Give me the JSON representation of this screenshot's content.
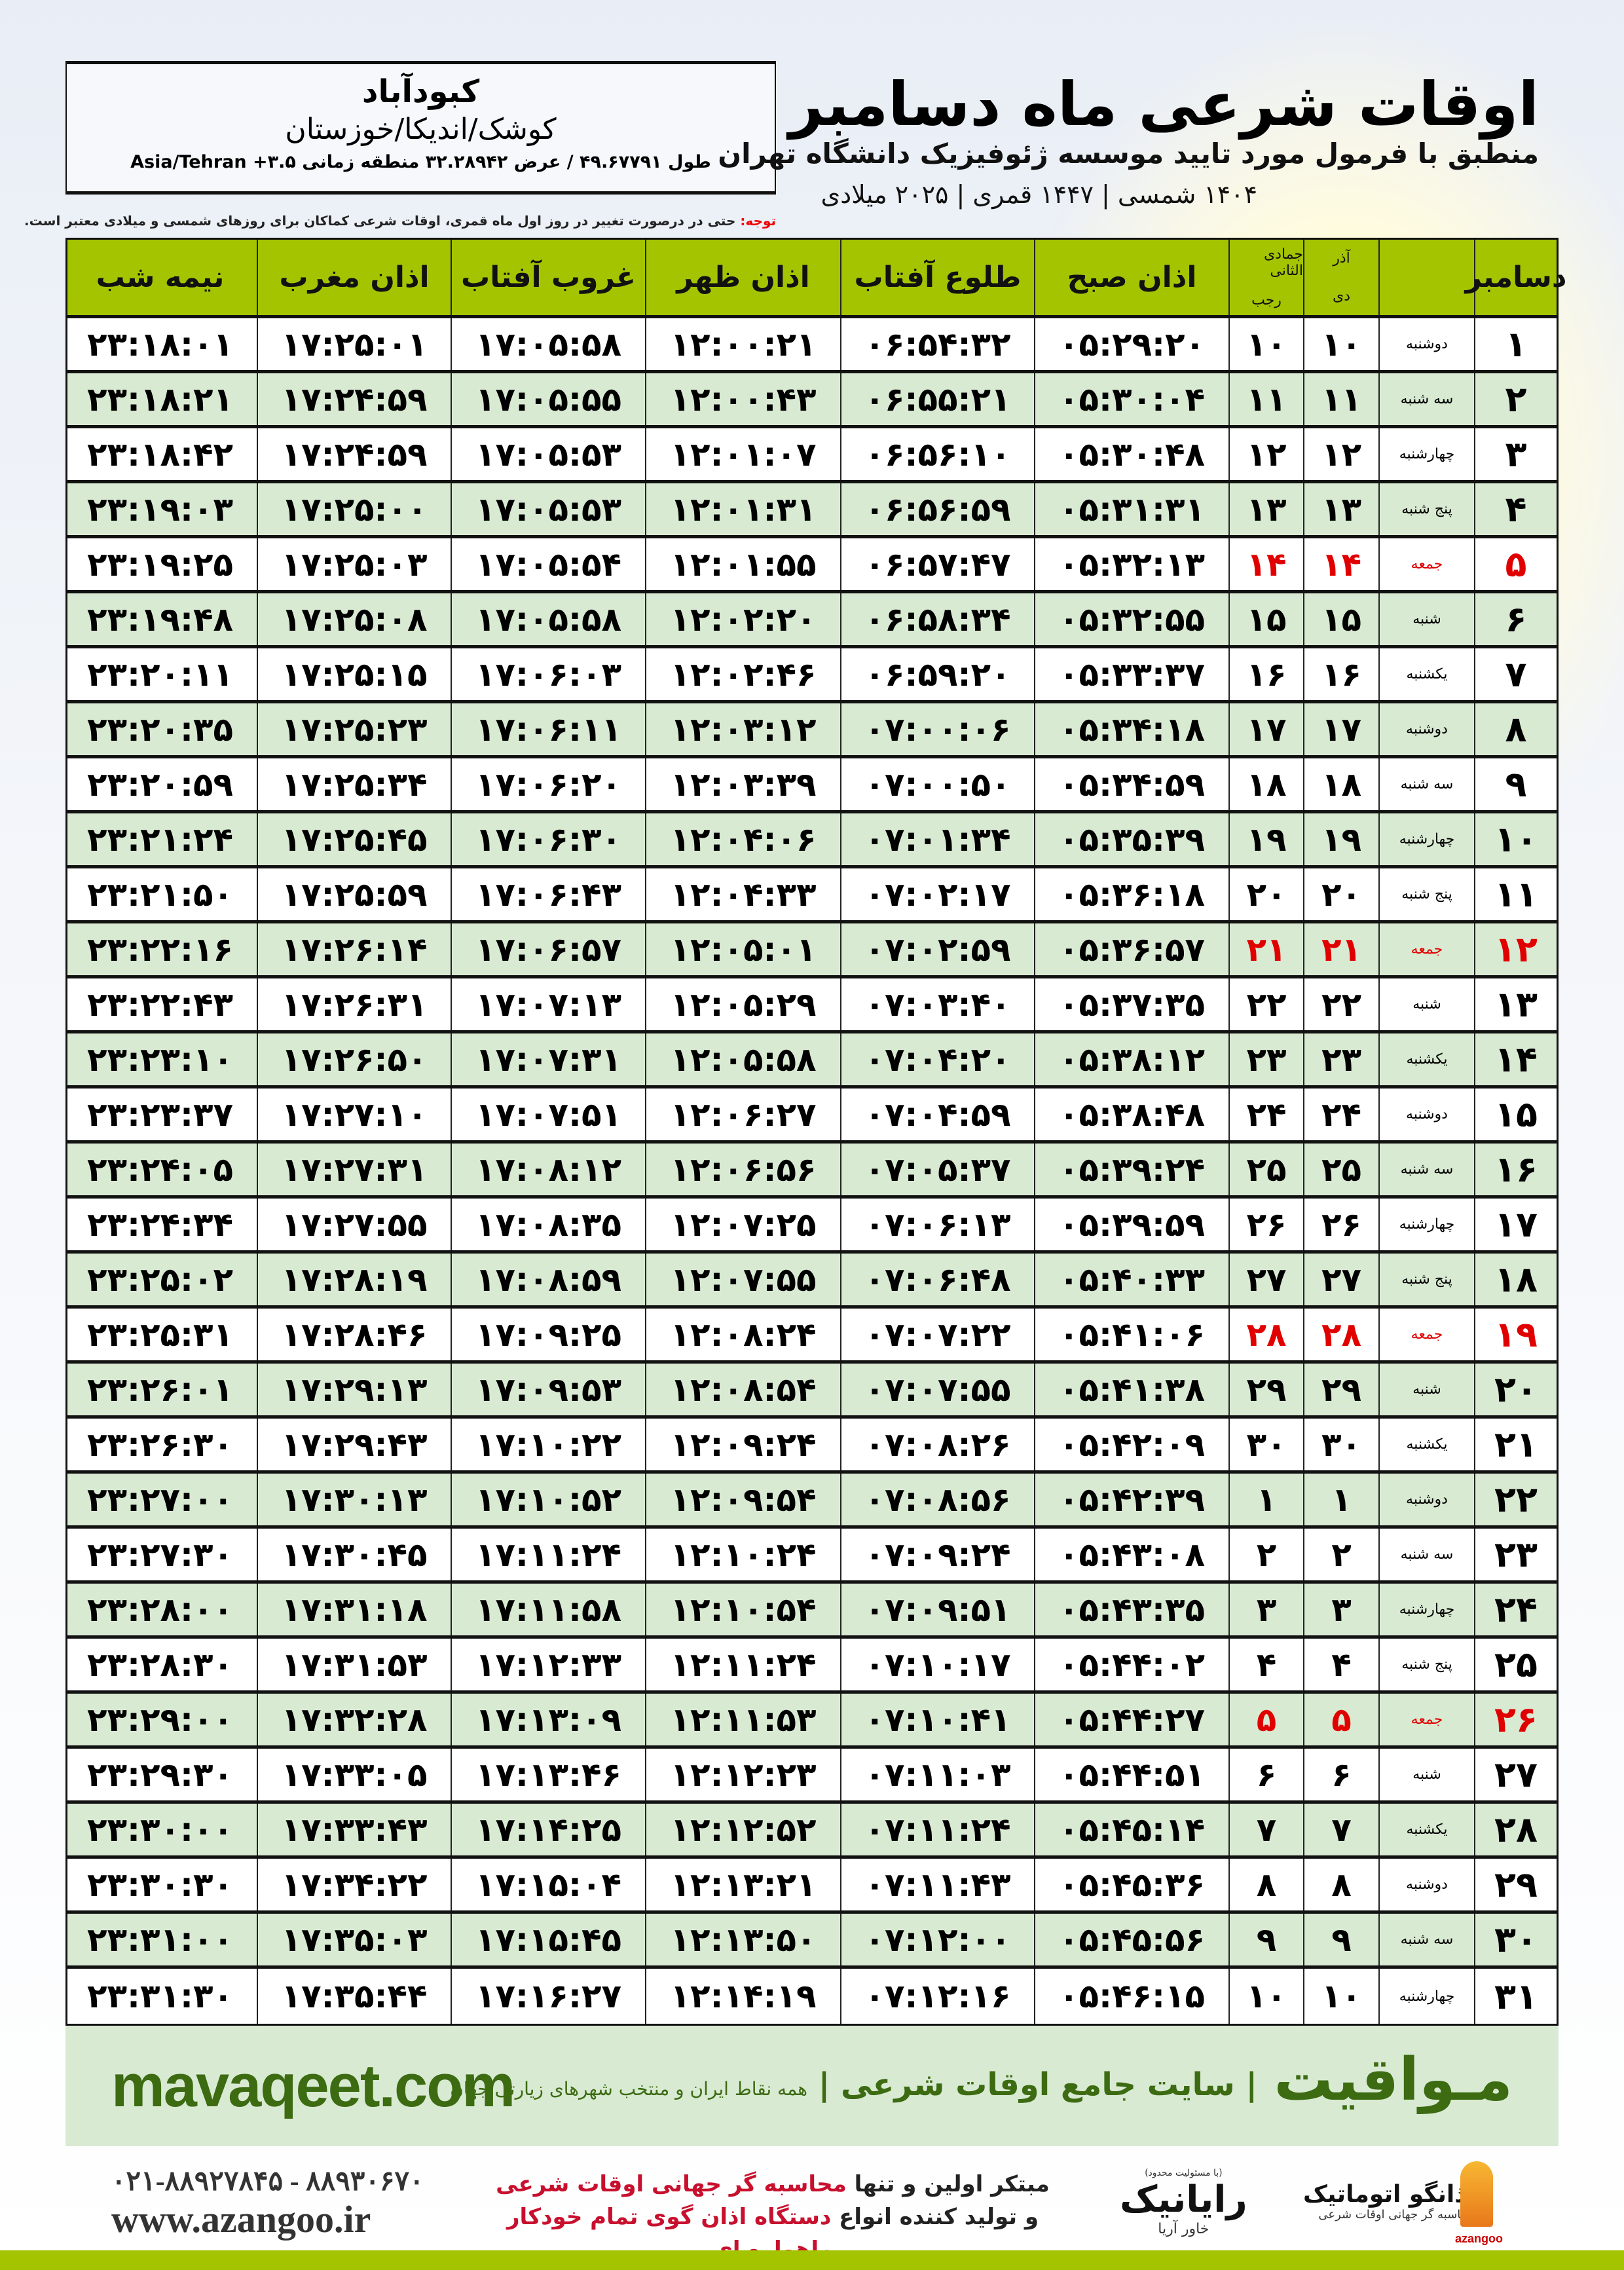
{
  "info": {
    "city": "کبودآباد",
    "region": "کوشک/اندیکا/خوزستان",
    "coords": "طول ۴۹.۶۷۷۹۱ / عرض ۳۲.۲۸۹۴۲ منطقه زمانی ۳.۵+ Asia/Tehran"
  },
  "header": {
    "title": "اوقات شرعی ماه دسامبر",
    "subtitle": "منطبق با فرمول مورد تایید موسسه ژئوفیزیک دانشگاه تهران",
    "dates": "۱۴۰۴ شمسی | ۱۴۴۷ قمری | ۲۰۲۵ میلادی"
  },
  "note": {
    "label": "توجه:",
    "text": " حتی در درصورت تغییر در روز اول ماه قمری، اوقات شرعی کماکان برای روزهای شمسی و میلادی معتبر است."
  },
  "columns": {
    "day": "دسامبر",
    "azar_top": "آذر",
    "azar_bottom": "دی",
    "hijri_top": "جمادی الثانی",
    "hijri_bottom": "رجب",
    "sobh": "اذان صبح",
    "tolu": "طلوع آفتاب",
    "zohr": "اذان ظهر",
    "ghoroob": "غروب آفتاب",
    "maghrib": "اذان مغرب",
    "nimeshab": "نیمه شب"
  },
  "colors": {
    "header_green": "#a4c400",
    "row_alt": "#d9ead3",
    "friday_red": "#e10000",
    "brand_green": "#3c6b12"
  },
  "rows": [
    [
      "۱",
      "دوشنبه",
      "۱۰",
      "۱۰",
      "۰۵:۲۹:۲۰",
      "۰۶:۵۴:۳۲",
      "۱۲:۰۰:۲۱",
      "۱۷:۰۵:۵۸",
      "۱۷:۲۵:۰۱",
      "۲۳:۱۸:۰۱"
    ],
    [
      "۲",
      "سه شنبه",
      "۱۱",
      "۱۱",
      "۰۵:۳۰:۰۴",
      "۰۶:۵۵:۲۱",
      "۱۲:۰۰:۴۳",
      "۱۷:۰۵:۵۵",
      "۱۷:۲۴:۵۹",
      "۲۳:۱۸:۲۱"
    ],
    [
      "۳",
      "چهارشنبه",
      "۱۲",
      "۱۲",
      "۰۵:۳۰:۴۸",
      "۰۶:۵۶:۱۰",
      "۱۲:۰۱:۰۷",
      "۱۷:۰۵:۵۳",
      "۱۷:۲۴:۵۹",
      "۲۳:۱۸:۴۲"
    ],
    [
      "۴",
      "پنج شنبه",
      "۱۳",
      "۱۳",
      "۰۵:۳۱:۳۱",
      "۰۶:۵۶:۵۹",
      "۱۲:۰۱:۳۱",
      "۱۷:۰۵:۵۳",
      "۱۷:۲۵:۰۰",
      "۲۳:۱۹:۰۳"
    ],
    [
      "۵",
      "جمعه",
      "۱۴",
      "۱۴",
      "۰۵:۳۲:۱۳",
      "۰۶:۵۷:۴۷",
      "۱۲:۰۱:۵۵",
      "۱۷:۰۵:۵۴",
      "۱۷:۲۵:۰۳",
      "۲۳:۱۹:۲۵"
    ],
    [
      "۶",
      "شنبه",
      "۱۵",
      "۱۵",
      "۰۵:۳۲:۵۵",
      "۰۶:۵۸:۳۴",
      "۱۲:۰۲:۲۰",
      "۱۷:۰۵:۵۸",
      "۱۷:۲۵:۰۸",
      "۲۳:۱۹:۴۸"
    ],
    [
      "۷",
      "یکشنبه",
      "۱۶",
      "۱۶",
      "۰۵:۳۳:۳۷",
      "۰۶:۵۹:۲۰",
      "۱۲:۰۲:۴۶",
      "۱۷:۰۶:۰۳",
      "۱۷:۲۵:۱۵",
      "۲۳:۲۰:۱۱"
    ],
    [
      "۸",
      "دوشنبه",
      "۱۷",
      "۱۷",
      "۰۵:۳۴:۱۸",
      "۰۷:۰۰:۰۶",
      "۱۲:۰۳:۱۲",
      "۱۷:۰۶:۱۱",
      "۱۷:۲۵:۲۳",
      "۲۳:۲۰:۳۵"
    ],
    [
      "۹",
      "سه شنبه",
      "۱۸",
      "۱۸",
      "۰۵:۳۴:۵۹",
      "۰۷:۰۰:۵۰",
      "۱۲:۰۳:۳۹",
      "۱۷:۰۶:۲۰",
      "۱۷:۲۵:۳۴",
      "۲۳:۲۰:۵۹"
    ],
    [
      "۱۰",
      "چهارشنبه",
      "۱۹",
      "۱۹",
      "۰۵:۳۵:۳۹",
      "۰۷:۰۱:۳۴",
      "۱۲:۰۴:۰۶",
      "۱۷:۰۶:۳۰",
      "۱۷:۲۵:۴۵",
      "۲۳:۲۱:۲۴"
    ],
    [
      "۱۱",
      "پنج شنبه",
      "۲۰",
      "۲۰",
      "۰۵:۳۶:۱۸",
      "۰۷:۰۲:۱۷",
      "۱۲:۰۴:۳۳",
      "۱۷:۰۶:۴۳",
      "۱۷:۲۵:۵۹",
      "۲۳:۲۱:۵۰"
    ],
    [
      "۱۲",
      "جمعه",
      "۲۱",
      "۲۱",
      "۰۵:۳۶:۵۷",
      "۰۷:۰۲:۵۹",
      "۱۲:۰۵:۰۱",
      "۱۷:۰۶:۵۷",
      "۱۷:۲۶:۱۴",
      "۲۳:۲۲:۱۶"
    ],
    [
      "۱۳",
      "شنبه",
      "۲۲",
      "۲۲",
      "۰۵:۳۷:۳۵",
      "۰۷:۰۳:۴۰",
      "۱۲:۰۵:۲۹",
      "۱۷:۰۷:۱۳",
      "۱۷:۲۶:۳۱",
      "۲۳:۲۲:۴۳"
    ],
    [
      "۱۴",
      "یکشنبه",
      "۲۳",
      "۲۳",
      "۰۵:۳۸:۱۲",
      "۰۷:۰۴:۲۰",
      "۱۲:۰۵:۵۸",
      "۱۷:۰۷:۳۱",
      "۱۷:۲۶:۵۰",
      "۲۳:۲۳:۱۰"
    ],
    [
      "۱۵",
      "دوشنبه",
      "۲۴",
      "۲۴",
      "۰۵:۳۸:۴۸",
      "۰۷:۰۴:۵۹",
      "۱۲:۰۶:۲۷",
      "۱۷:۰۷:۵۱",
      "۱۷:۲۷:۱۰",
      "۲۳:۲۳:۳۷"
    ],
    [
      "۱۶",
      "سه شنبه",
      "۲۵",
      "۲۵",
      "۰۵:۳۹:۲۴",
      "۰۷:۰۵:۳۷",
      "۱۲:۰۶:۵۶",
      "۱۷:۰۸:۱۲",
      "۱۷:۲۷:۳۱",
      "۲۳:۲۴:۰۵"
    ],
    [
      "۱۷",
      "چهارشنبه",
      "۲۶",
      "۲۶",
      "۰۵:۳۹:۵۹",
      "۰۷:۰۶:۱۳",
      "۱۲:۰۷:۲۵",
      "۱۷:۰۸:۳۵",
      "۱۷:۲۷:۵۵",
      "۲۳:۲۴:۳۴"
    ],
    [
      "۱۸",
      "پنج شنبه",
      "۲۷",
      "۲۷",
      "۰۵:۴۰:۳۳",
      "۰۷:۰۶:۴۸",
      "۱۲:۰۷:۵۵",
      "۱۷:۰۸:۵۹",
      "۱۷:۲۸:۱۹",
      "۲۳:۲۵:۰۲"
    ],
    [
      "۱۹",
      "جمعه",
      "۲۸",
      "۲۸",
      "۰۵:۴۱:۰۶",
      "۰۷:۰۷:۲۲",
      "۱۲:۰۸:۲۴",
      "۱۷:۰۹:۲۵",
      "۱۷:۲۸:۴۶",
      "۲۳:۲۵:۳۱"
    ],
    [
      "۲۰",
      "شنبه",
      "۲۹",
      "۲۹",
      "۰۵:۴۱:۳۸",
      "۰۷:۰۷:۵۵",
      "۱۲:۰۸:۵۴",
      "۱۷:۰۹:۵۳",
      "۱۷:۲۹:۱۳",
      "۲۳:۲۶:۰۱"
    ],
    [
      "۲۱",
      "یکشنبه",
      "۳۰",
      "۳۰",
      "۰۵:۴۲:۰۹",
      "۰۷:۰۸:۲۶",
      "۱۲:۰۹:۲۴",
      "۱۷:۱۰:۲۲",
      "۱۷:۲۹:۴۳",
      "۲۳:۲۶:۳۰"
    ],
    [
      "۲۲",
      "دوشنبه",
      "۱",
      "۱",
      "۰۵:۴۲:۳۹",
      "۰۷:۰۸:۵۶",
      "۱۲:۰۹:۵۴",
      "۱۷:۱۰:۵۲",
      "۱۷:۳۰:۱۳",
      "۲۳:۲۷:۰۰"
    ],
    [
      "۲۳",
      "سه شنبه",
      "۲",
      "۲",
      "۰۵:۴۳:۰۸",
      "۰۷:۰۹:۲۴",
      "۱۲:۱۰:۲۴",
      "۱۷:۱۱:۲۴",
      "۱۷:۳۰:۴۵",
      "۲۳:۲۷:۳۰"
    ],
    [
      "۲۴",
      "چهارشنبه",
      "۳",
      "۳",
      "۰۵:۴۳:۳۵",
      "۰۷:۰۹:۵۱",
      "۱۲:۱۰:۵۴",
      "۱۷:۱۱:۵۸",
      "۱۷:۳۱:۱۸",
      "۲۳:۲۸:۰۰"
    ],
    [
      "۲۵",
      "پنج شنبه",
      "۴",
      "۴",
      "۰۵:۴۴:۰۲",
      "۰۷:۱۰:۱۷",
      "۱۲:۱۱:۲۴",
      "۱۷:۱۲:۳۳",
      "۱۷:۳۱:۵۳",
      "۲۳:۲۸:۳۰"
    ],
    [
      "۲۶",
      "جمعه",
      "۵",
      "۵",
      "۰۵:۴۴:۲۷",
      "۰۷:۱۰:۴۱",
      "۱۲:۱۱:۵۳",
      "۱۷:۱۳:۰۹",
      "۱۷:۳۲:۲۸",
      "۲۳:۲۹:۰۰"
    ],
    [
      "۲۷",
      "شنبه",
      "۶",
      "۶",
      "۰۵:۴۴:۵۱",
      "۰۷:۱۱:۰۳",
      "۱۲:۱۲:۲۳",
      "۱۷:۱۳:۴۶",
      "۱۷:۳۳:۰۵",
      "۲۳:۲۹:۳۰"
    ],
    [
      "۲۸",
      "یکشنبه",
      "۷",
      "۷",
      "۰۵:۴۵:۱۴",
      "۰۷:۱۱:۲۴",
      "۱۲:۱۲:۵۲",
      "۱۷:۱۴:۲۵",
      "۱۷:۳۳:۴۳",
      "۲۳:۳۰:۰۰"
    ],
    [
      "۲۹",
      "دوشنبه",
      "۸",
      "۸",
      "۰۵:۴۵:۳۶",
      "۰۷:۱۱:۴۳",
      "۱۲:۱۳:۲۱",
      "۱۷:۱۵:۰۴",
      "۱۷:۳۴:۲۲",
      "۲۳:۳۰:۳۰"
    ],
    [
      "۳۰",
      "سه شنبه",
      "۹",
      "۹",
      "۰۵:۴۵:۵۶",
      "۰۷:۱۲:۰۰",
      "۱۲:۱۳:۵۰",
      "۱۷:۱۵:۴۵",
      "۱۷:۳۵:۰۳",
      "۲۳:۳۱:۰۰"
    ],
    [
      "۳۱",
      "چهارشنبه",
      "۱۰",
      "۱۰",
      "۰۵:۴۶:۱۵",
      "۰۷:۱۲:۱۶",
      "۱۲:۱۴:۱۹",
      "۱۷:۱۶:۲۷",
      "۱۷:۳۵:۴۴",
      "۲۳:۳۱:۳۰"
    ]
  ],
  "friday_label": "جمعه",
  "banner": {
    "brand": "مـواقیت",
    "tagline": "| سایت جامع اوقات شرعی |",
    "tagline_sub": "همه نقاط ایران و منتخب شهرهای زیارتی جهان",
    "site": "mavaqeet.com"
  },
  "footer": {
    "phones": "۰۲۱-۸۸۹۲۷۸۴۵ - ۸۸۹۳۰۶۷۰",
    "website": "www.azangoo.ir",
    "promo1_a": "مبتکر اولین و تنها ",
    "promo1_b": "محاسبه گر جهانی اوقات شرعی",
    "promo2_a": "و تولید کننده انواع ",
    "promo2_b": "دستگاه اذان گوی تمام خودکار ماهواره ای",
    "rayanik": "رایانیک",
    "rayanik_small": "(با مسئولیت محدود)",
    "rayanik_sub": "خاور آریا",
    "azangoo": "اذانگو اتوماتیک",
    "azangoo_sub": "محاسبه گر جهانی اوقات شرعی",
    "azangoo_latin": "azangoo"
  }
}
